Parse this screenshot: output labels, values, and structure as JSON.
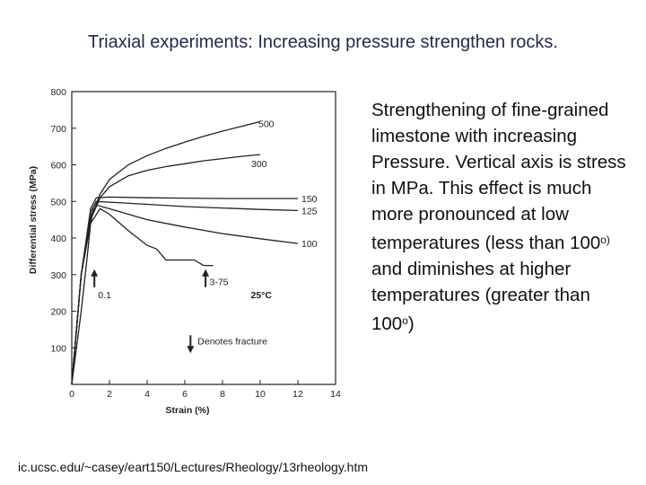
{
  "title": "Triaxial experiments: Increasing pressure strengthen rocks.",
  "description": {
    "part1": "Strengthening of fine-grained limestone with increasing Pressure. Vertical axis is stress in MPa. This effect is much more pronounced at low temperatures (less than 100",
    "sup1": "o)",
    "part2": " and diminishes at higher temperatures (greater than 100",
    "sup2": "o",
    "part3": ")"
  },
  "source": "ic.ucsc.edu/~casey/eart150/Lectures/Rheology/13rheology.htm",
  "chart_data": {
    "type": "line",
    "xlabel": "Strain (%)",
    "ylabel": "Differential stress (MPa)",
    "xlim": [
      0,
      14
    ],
    "ylim": [
      0,
      800
    ],
    "xticks": [
      "0",
      "2",
      "4",
      "6",
      "8",
      "10",
      "12",
      "14"
    ],
    "yticks": [
      "100",
      "200",
      "300",
      "400",
      "500",
      "600",
      "700",
      "800"
    ],
    "temperature_label": "25°C",
    "legend_text": "Denotes fracture",
    "grid": false,
    "series": [
      {
        "name": "500",
        "x": [
          0,
          0.5,
          1,
          1.5,
          2,
          3,
          4,
          5,
          6,
          7,
          8,
          9,
          10
        ],
        "y": [
          0,
          300,
          450,
          520,
          560,
          600,
          625,
          645,
          662,
          678,
          692,
          705,
          718
        ]
      },
      {
        "name": "300",
        "x": [
          0,
          0.5,
          1,
          1.5,
          2,
          3,
          4,
          5,
          6,
          7,
          8,
          9,
          10
        ],
        "y": [
          0,
          300,
          450,
          510,
          540,
          570,
          585,
          595,
          603,
          611,
          617,
          623,
          628
        ]
      },
      {
        "name": "150",
        "x": [
          0,
          0.5,
          1,
          1.3,
          2,
          4,
          6,
          8,
          10,
          12
        ],
        "y": [
          0,
          300,
          480,
          510,
          512,
          510,
          509,
          508,
          508,
          508
        ]
      },
      {
        "name": "125",
        "x": [
          0,
          0.5,
          1,
          1.3,
          2,
          4,
          6,
          8,
          10,
          12
        ],
        "y": [
          0,
          300,
          470,
          500,
          498,
          492,
          486,
          482,
          478,
          475
        ]
      },
      {
        "name": "100",
        "x": [
          0,
          0.5,
          1,
          1.3,
          2,
          3,
          4,
          6,
          8,
          10,
          12
        ],
        "y": [
          0,
          300,
          460,
          490,
          480,
          465,
          450,
          430,
          412,
          398,
          385
        ]
      },
      {
        "name": "3-75",
        "x": [
          0,
          0.5,
          1,
          1.5,
          2,
          3,
          3.5,
          4,
          4.5,
          5,
          5.5,
          6,
          6.5,
          7,
          7.5
        ],
        "y": [
          0,
          300,
          440,
          480,
          465,
          420,
          400,
          380,
          370,
          340,
          340,
          340,
          340,
          325,
          325
        ]
      },
      {
        "name": "0.1",
        "x": [
          0,
          0.5,
          0.8,
          1.0,
          1.15
        ],
        "y": [
          0,
          200,
          340,
          440,
          480
        ]
      }
    ],
    "fracture_points": [
      {
        "series": "0.1",
        "x": 1.2,
        "y": 300
      },
      {
        "series": "3-75",
        "x": 7.1,
        "y": 300
      }
    ]
  }
}
